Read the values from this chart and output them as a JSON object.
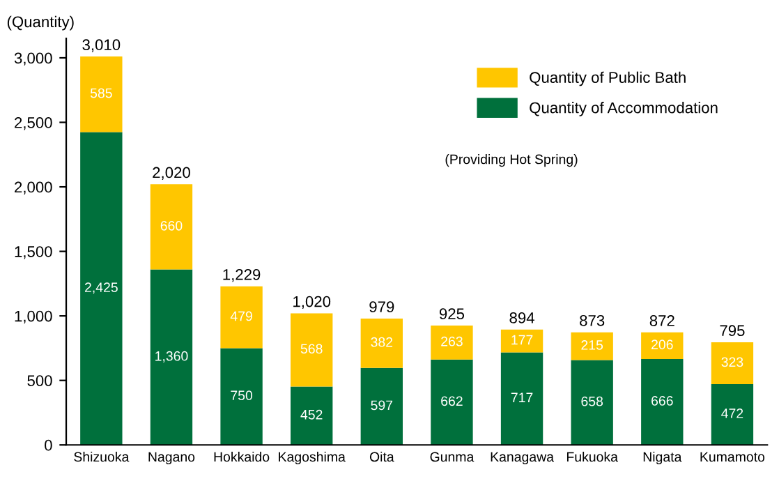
{
  "chart_data": {
    "type": "bar",
    "stacked": true,
    "ylabel": "(Quantity)",
    "categories": [
      "Shizuoka",
      "Nagano",
      "Hokkaido",
      "Kagoshima",
      "Oita",
      "Gunma",
      "Kanagawa",
      "Fukuoka",
      "Nigata",
      "Kumamoto"
    ],
    "series": [
      {
        "name": "Quantity of Accommodation",
        "color": "#00703c",
        "values": [
          2425,
          1360,
          750,
          452,
          597,
          662,
          717,
          658,
          666,
          472
        ],
        "value_labels": [
          "2,425",
          "1,360",
          "750",
          "452",
          "597",
          "662",
          "717",
          "658",
          "666",
          "472"
        ]
      },
      {
        "name": "Quantity of Public Bath",
        "color": "#ffc600",
        "values": [
          585,
          660,
          479,
          568,
          382,
          263,
          177,
          215,
          206,
          323
        ],
        "value_labels": [
          "585",
          "660",
          "479",
          "568",
          "382",
          "263",
          "177",
          "215",
          "206",
          "323"
        ]
      }
    ],
    "totals": [
      "3,010",
      "2,020",
      "1,229",
      "1,020",
      "979",
      "925",
      "894",
      "873",
      "872",
      "795"
    ],
    "ylim": [
      0,
      3150
    ],
    "yticks": [
      0,
      {
        "value": 500,
        "label": "500"
      },
      {
        "value": 1000,
        "label": "1,000"
      },
      {
        "value": 1500,
        "label": "1,500"
      },
      {
        "value": 2000,
        "label": "2,000"
      },
      {
        "value": 2500,
        "label": "2,500"
      },
      {
        "value": 3000,
        "label": "3,000"
      }
    ],
    "annotations": [
      "(Providing Hot Spring)"
    ],
    "legend": "top right",
    "grid": false
  }
}
